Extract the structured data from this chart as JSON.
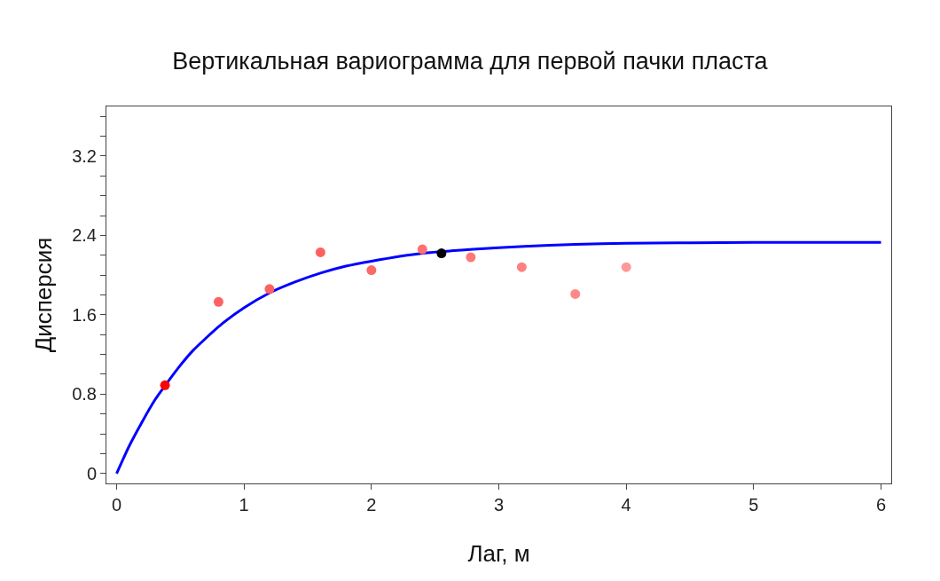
{
  "chart_data": {
    "type": "scatter",
    "title": "Вертикальная вариограмма для первой пачки пласта",
    "xlabel": "Лаг, м",
    "ylabel": "Дисперсия",
    "xlim": [
      -0.08,
      6.08
    ],
    "ylim": [
      -0.1,
      3.7
    ],
    "xticks": [
      0,
      1,
      2,
      3,
      4,
      5,
      6
    ],
    "yticks": [
      0,
      {
        "value": 0.2,
        "label": null
      },
      {
        "value": 0.4,
        "label": null
      },
      {
        "value": 0.6,
        "label": null
      },
      0.8,
      {
        "value": 1.0,
        "label": null
      },
      {
        "value": 1.2,
        "label": null
      },
      {
        "value": 1.4,
        "label": null
      },
      1.6,
      {
        "value": 1.8,
        "label": null
      },
      {
        "value": 2.0,
        "label": null
      },
      {
        "value": 2.2,
        "label": null
      },
      2.4,
      {
        "value": 2.6,
        "label": null
      },
      {
        "value": 2.8,
        "label": null
      },
      {
        "value": 3.0,
        "label": null
      },
      3.2,
      {
        "value": 3.4,
        "label": null
      },
      {
        "value": 3.6,
        "label": null
      }
    ],
    "grid": false,
    "marker": "circle",
    "series": [
      {
        "type": "line",
        "marker": "none",
        "line_style": "solid",
        "color": "#0000ff",
        "x": [
          0,
          0.1,
          0.2,
          0.3,
          0.4,
          0.5,
          0.6,
          0.8,
          1.0,
          1.2,
          1.4,
          1.6,
          1.8,
          2.0,
          2.4,
          2.8,
          3.2,
          3.6,
          4.0,
          5.0,
          6.0
        ],
        "values": [
          0,
          0.28,
          0.52,
          0.74,
          0.92,
          1.09,
          1.24,
          1.48,
          1.67,
          1.82,
          1.93,
          2.02,
          2.09,
          2.14,
          2.22,
          2.26,
          2.29,
          2.31,
          2.32,
          2.33,
          2.33
        ]
      },
      {
        "x": [
          0.38,
          0.8,
          1.2,
          1.6,
          2.0,
          2.4,
          2.78,
          3.18,
          3.6,
          4.0
        ],
        "values": [
          0.89,
          1.73,
          1.86,
          2.23,
          2.05,
          2.26,
          2.18,
          2.08,
          1.81,
          2.08
        ],
        "colors": [
          "#ff0000",
          "#ff6060",
          "#ff6060",
          "#ff6060",
          "#ff6868",
          "#ff7070",
          "#ff7878",
          "#ff8080",
          "#ff8888",
          "#ff9898"
        ]
      },
      {
        "color": "#000000",
        "x": [
          2.55
        ],
        "values": [
          2.22
        ]
      }
    ]
  }
}
